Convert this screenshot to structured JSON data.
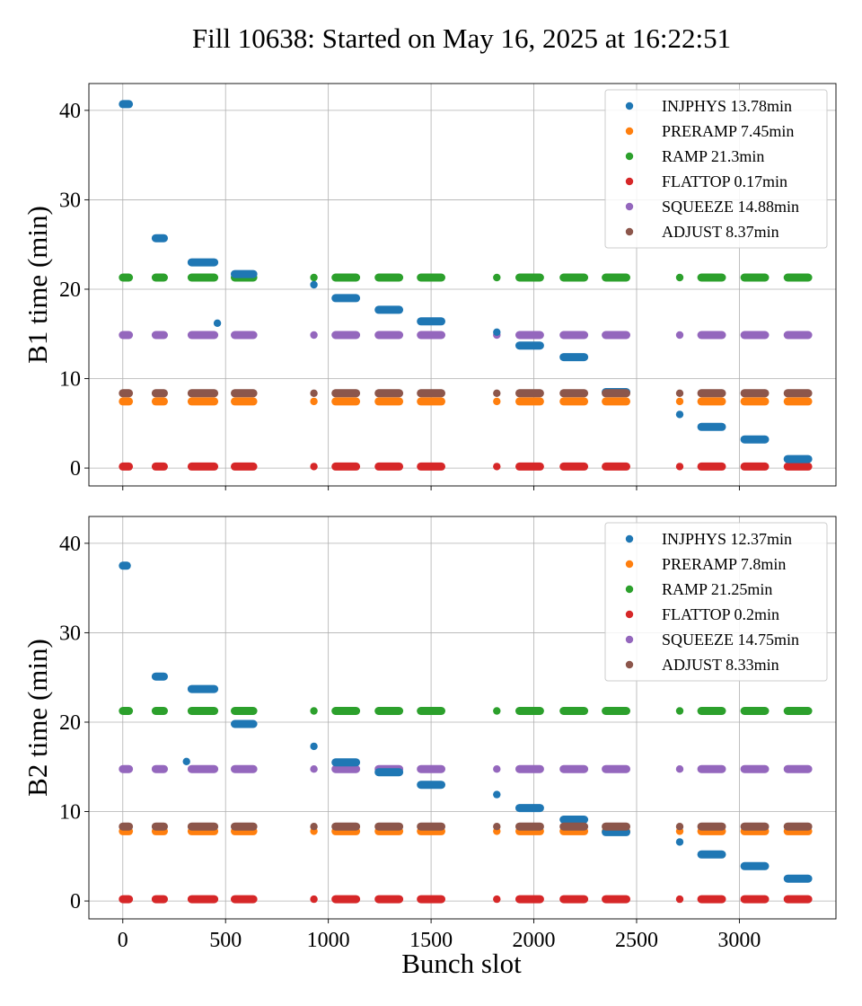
{
  "figure_title": "Fill 10638: Started on May 16, 2025 at 16:22:51",
  "xlabel": "Bunch slot",
  "colors": {
    "INJPHYS": "#1f77b4",
    "PRERAMP": "#ff7f0e",
    "RAMP": "#2ca02c",
    "FLATTOP": "#d62728",
    "SQUEEZE": "#9467bd",
    "ADJUST": "#8c564b"
  },
  "chart_data": [
    {
      "type": "scatter",
      "ylabel": "B1 time (min)",
      "xlim": [
        -165,
        3470
      ],
      "ylim": [
        -2,
        43
      ],
      "xticks": [
        0,
        500,
        1000,
        1500,
        2000,
        2500,
        3000
      ],
      "xtick_labels_visible": false,
      "yticks": [
        0,
        10,
        20,
        30,
        40
      ],
      "grid": true,
      "legend_position": "upper right",
      "legend": [
        {
          "phase": "INJPHYS",
          "label": "INJPHYS 13.78min"
        },
        {
          "phase": "PRERAMP",
          "label": "PRERAMP 7.45min"
        },
        {
          "phase": "RAMP",
          "label": "RAMP 21.3min"
        },
        {
          "phase": "FLATTOP",
          "label": "FLATTOP 0.17min"
        },
        {
          "phase": "SQUEEZE",
          "label": "SQUEEZE 14.88min"
        },
        {
          "phase": "ADJUST",
          "label": "ADJUST 8.37min"
        }
      ],
      "groups": [
        [
          0,
          30
        ],
        [
          160,
          200
        ],
        [
          335,
          445
        ],
        [
          545,
          635
        ],
        [
          930,
          930
        ],
        [
          1035,
          1135
        ],
        [
          1245,
          1345
        ],
        [
          1450,
          1550
        ],
        [
          1820,
          1820
        ],
        [
          1930,
          2030
        ],
        [
          2145,
          2245
        ],
        [
          2350,
          2450
        ],
        [
          2710,
          2710
        ],
        [
          2815,
          2915
        ],
        [
          3025,
          3125
        ],
        [
          3235,
          3335
        ]
      ],
      "series": [
        {
          "phase": "INJPHYS",
          "points": [
            [
              0,
              30,
              40.7
            ],
            [
              160,
              200,
              25.7
            ],
            [
              335,
              445,
              23.0
            ],
            [
              460,
              460,
              16.2
            ],
            [
              545,
              635,
              21.7
            ],
            [
              930,
              930,
              20.5
            ],
            [
              1035,
              1135,
              19.0
            ],
            [
              1245,
              1345,
              17.7
            ],
            [
              1450,
              1550,
              16.4
            ],
            [
              1820,
              1820,
              15.2
            ],
            [
              1930,
              2030,
              13.7
            ],
            [
              2145,
              2245,
              12.4
            ],
            [
              2350,
              2450,
              8.5
            ],
            [
              2710,
              2710,
              6.0
            ],
            [
              2815,
              2915,
              4.6
            ],
            [
              3025,
              3125,
              3.2
            ],
            [
              3235,
              3335,
              1.0
            ]
          ]
        },
        {
          "phase": "PRERAMP",
          "all_groups_y": 7.45
        },
        {
          "phase": "RAMP",
          "all_groups_y": 21.3
        },
        {
          "phase": "FLATTOP",
          "all_groups_y": 0.17
        },
        {
          "phase": "SQUEEZE",
          "all_groups_y": 14.88
        },
        {
          "phase": "ADJUST",
          "all_groups_y": 8.37
        }
      ]
    },
    {
      "type": "scatter",
      "ylabel": "B2 time (min)",
      "xlabel": "Bunch slot",
      "xlim": [
        -165,
        3470
      ],
      "ylim": [
        -2,
        43
      ],
      "xticks": [
        0,
        500,
        1000,
        1500,
        2000,
        2500,
        3000
      ],
      "xtick_labels_visible": true,
      "yticks": [
        0,
        10,
        20,
        30,
        40
      ],
      "grid": true,
      "legend_position": "upper right",
      "legend": [
        {
          "phase": "INJPHYS",
          "label": "INJPHYS 12.37min"
        },
        {
          "phase": "PRERAMP",
          "label": "PRERAMP 7.8min"
        },
        {
          "phase": "RAMP",
          "label": "RAMP 21.25min"
        },
        {
          "phase": "FLATTOP",
          "label": "FLATTOP 0.2min"
        },
        {
          "phase": "SQUEEZE",
          "label": "SQUEEZE 14.75min"
        },
        {
          "phase": "ADJUST",
          "label": "ADJUST 8.33min"
        }
      ],
      "groups": [
        [
          0,
          30
        ],
        [
          160,
          200
        ],
        [
          335,
          445
        ],
        [
          545,
          635
        ],
        [
          930,
          930
        ],
        [
          1035,
          1135
        ],
        [
          1245,
          1345
        ],
        [
          1450,
          1550
        ],
        [
          1820,
          1820
        ],
        [
          1930,
          2030
        ],
        [
          2145,
          2245
        ],
        [
          2350,
          2450
        ],
        [
          2710,
          2710
        ],
        [
          2815,
          2915
        ],
        [
          3025,
          3125
        ],
        [
          3235,
          3335
        ]
      ],
      "series": [
        {
          "phase": "INJPHYS",
          "points": [
            [
              0,
              20,
              37.5
            ],
            [
              160,
              200,
              25.1
            ],
            [
              310,
              310,
              15.6
            ],
            [
              335,
              445,
              23.7
            ],
            [
              545,
              635,
              19.8
            ],
            [
              930,
              930,
              17.3
            ],
            [
              1035,
              1135,
              15.5
            ],
            [
              1245,
              1345,
              14.4
            ],
            [
              1450,
              1550,
              13.0
            ],
            [
              1820,
              1820,
              11.9
            ],
            [
              1930,
              2030,
              10.4
            ],
            [
              2145,
              2245,
              9.1
            ],
            [
              2350,
              2450,
              7.7
            ],
            [
              2710,
              2710,
              6.6
            ],
            [
              2815,
              2915,
              5.2
            ],
            [
              3025,
              3125,
              3.9
            ],
            [
              3235,
              3335,
              2.5
            ]
          ]
        },
        {
          "phase": "PRERAMP",
          "all_groups_y": 7.8
        },
        {
          "phase": "RAMP",
          "all_groups_y": 21.25
        },
        {
          "phase": "FLATTOP",
          "all_groups_y": 0.2
        },
        {
          "phase": "SQUEEZE",
          "all_groups_y": 14.75
        },
        {
          "phase": "ADJUST",
          "all_groups_y": 8.33
        }
      ]
    }
  ]
}
